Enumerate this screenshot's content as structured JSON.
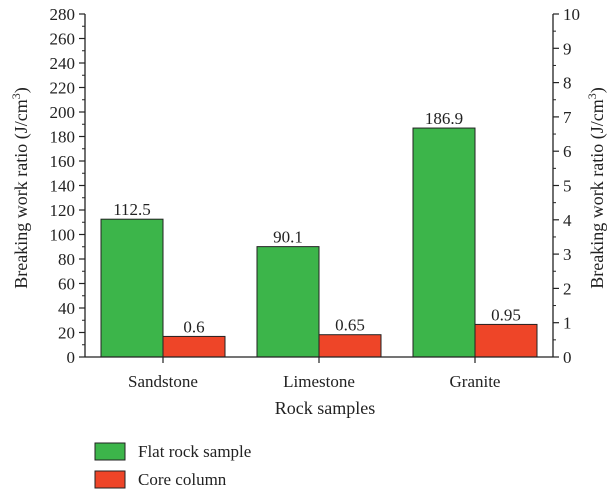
{
  "chart_data": {
    "type": "bar",
    "xlabel": "Rock samples",
    "ylabel_left": "Breaking work ratio (J/cm",
    "ylabel_right": "Breaking work ratio (J/cm",
    "ylabel_superscript": "3",
    "ylabel_suffix": ")",
    "categories": [
      "Sandstone",
      "Limestone",
      "Granite"
    ],
    "ylim_left": [
      0,
      280
    ],
    "ylim_right": [
      0,
      10
    ],
    "yticks_left": [
      0,
      20,
      40,
      60,
      80,
      100,
      120,
      140,
      160,
      180,
      200,
      220,
      240,
      260,
      280
    ],
    "yticks_right": [
      0,
      1,
      2,
      3,
      4,
      5,
      6,
      7,
      8,
      9,
      10
    ],
    "series": [
      {
        "name": "Flat rock sample",
        "axis": "left",
        "color": "#3cb54a",
        "values": [
          112.5,
          90.1,
          186.9
        ],
        "labels": [
          "112.5",
          "90.1",
          "186.9"
        ]
      },
      {
        "name": "Core column",
        "axis": "right",
        "color": "#ee4528",
        "values": [
          0.6,
          0.65,
          0.95
        ],
        "labels": [
          "0.6",
          "0.65",
          "0.95"
        ]
      }
    ],
    "legend_position": "bottom-left",
    "grid": false
  }
}
